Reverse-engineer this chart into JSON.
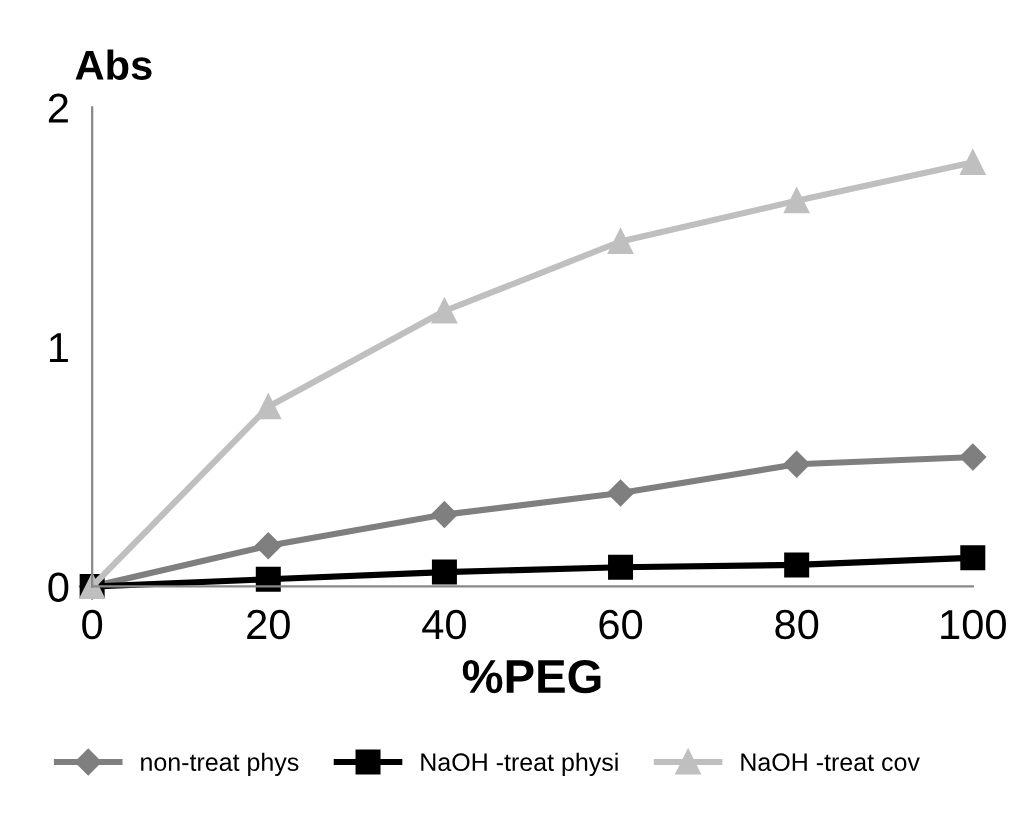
{
  "chart_data": {
    "type": "line",
    "ylabel": "Abs",
    "xlabel": "%PEG",
    "x": [
      0,
      20,
      40,
      60,
      80,
      100
    ],
    "series": [
      {
        "name": "non-treat phys",
        "color": "#7f7f7f",
        "marker": "diamond",
        "values": [
          0,
          0.17,
          0.3,
          0.39,
          0.51,
          0.54
        ]
      },
      {
        "name": "NaOH -treat physi",
        "color": "#000000",
        "marker": "square",
        "values": [
          0,
          0.03,
          0.06,
          0.08,
          0.09,
          0.12
        ]
      },
      {
        "name": "NaOH -treat cov",
        "color": "#bfbfbf",
        "marker": "triangle",
        "values": [
          0,
          0.75,
          1.15,
          1.44,
          1.61,
          1.77
        ]
      }
    ],
    "xlim": [
      0,
      100
    ],
    "xticks": [
      0,
      20,
      40,
      60,
      80,
      100
    ],
    "ylim": [
      0,
      2
    ],
    "yticks": [
      0,
      1,
      2
    ],
    "grid": false,
    "legend": "bottom",
    "line_style": "solid"
  }
}
